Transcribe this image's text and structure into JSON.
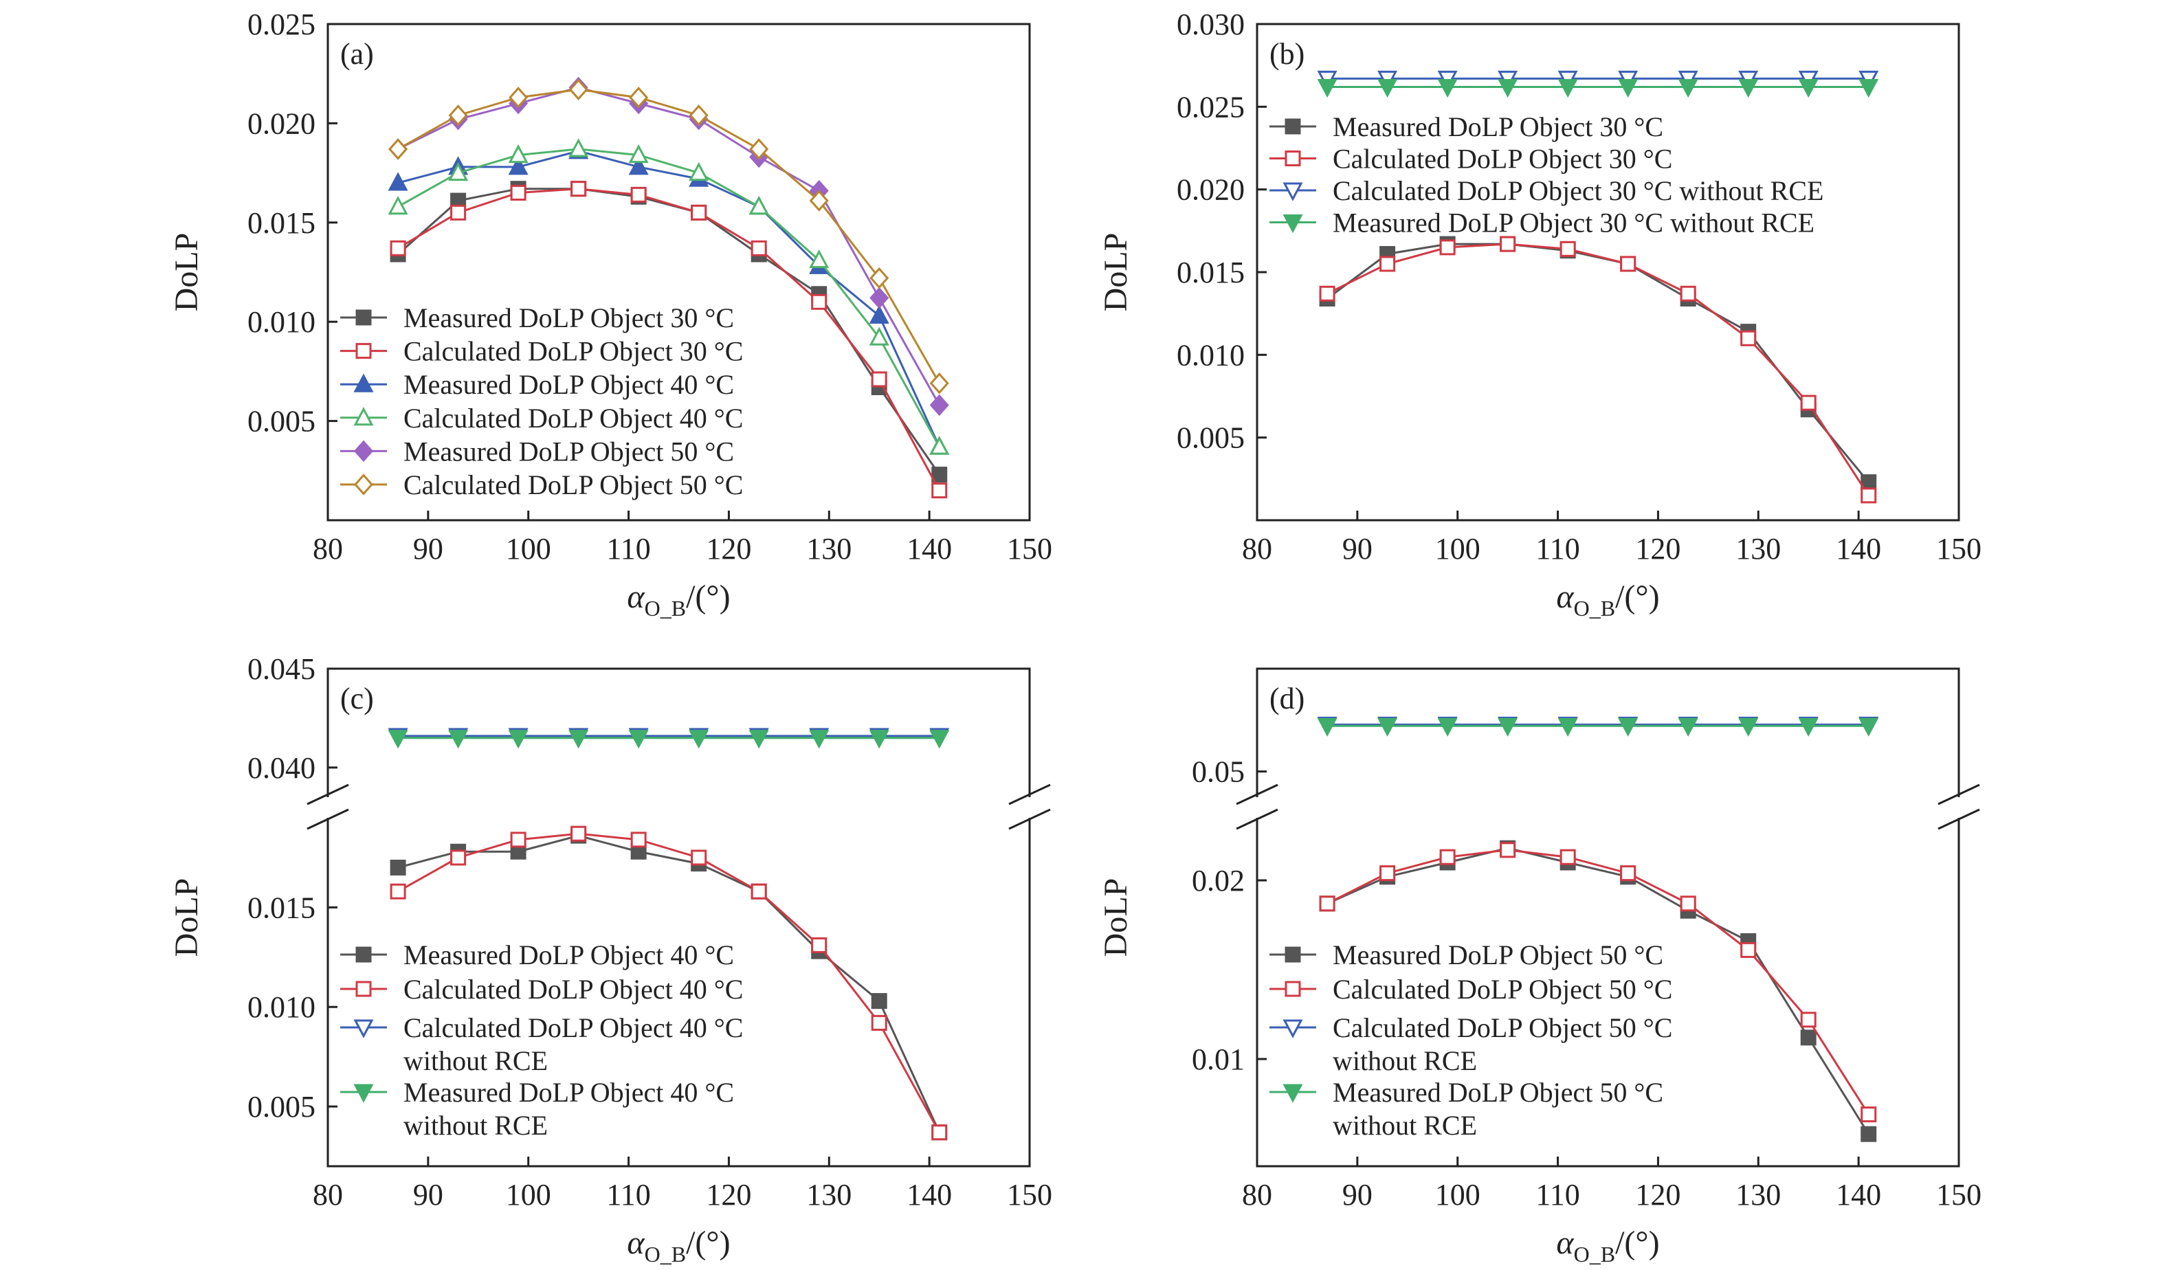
{
  "colors": {
    "measured30": "#555555",
    "calculated30": "#d03a44",
    "measured40": "#3b5fb5",
    "calculated40": "#4fb36a",
    "measured50": "#9b63c4",
    "calculated50": "#b8862c",
    "calc_norce": "#3b5fb5",
    "meas_norce": "#3fae6b",
    "meas_gray": "#555555",
    "calc_red": "#d03a44"
  },
  "chart_data": [
    {
      "type": "line",
      "panel_label": "(a)",
      "xlabel_main": "α",
      "xlabel_sub": "O_B",
      "xlabel_unit": "/(°)",
      "ylabel": "DoLP",
      "xlim": [
        80,
        150
      ],
      "ylim": [
        0,
        0.025
      ],
      "x_ticks": [
        "80",
        "90",
        "100",
        "110",
        "120",
        "130",
        "140",
        "150"
      ],
      "y_ticks": [
        "0.005",
        "0.010",
        "0.015",
        "0.020",
        "0.025"
      ],
      "legend_position": "lower-left",
      "x": [
        87,
        93,
        99,
        105,
        111,
        117,
        123,
        129,
        135,
        141
      ],
      "series": [
        {
          "name": "Measured DoLP Object 30 °C",
          "marker": "square-filled",
          "color_key": "measured30",
          "values": [
            0.0134,
            0.0161,
            0.0167,
            0.0167,
            0.0163,
            0.0155,
            0.0134,
            0.0114,
            0.0067,
            0.0023
          ]
        },
        {
          "name": "Calculated DoLP Object 30 °C",
          "marker": "square-open",
          "color_key": "calculated30",
          "values": [
            0.0137,
            0.0155,
            0.0165,
            0.0167,
            0.0164,
            0.0155,
            0.0137,
            0.011,
            0.0071,
            0.0015
          ]
        },
        {
          "name": "Measured DoLP Object 40 °C",
          "marker": "triangle-up-filled",
          "color_key": "measured40",
          "values": [
            0.017,
            0.0178,
            0.0178,
            0.0186,
            0.0178,
            0.0172,
            0.0158,
            0.0128,
            0.0103,
            0.0037
          ]
        },
        {
          "name": "Calculated DoLP Object 40 °C",
          "marker": "triangle-up-open",
          "color_key": "calculated40",
          "values": [
            0.0158,
            0.0175,
            0.0184,
            0.0187,
            0.0184,
            0.0175,
            0.0158,
            0.0131,
            0.0092,
            0.0037
          ]
        },
        {
          "name": "Measured DoLP Object 50 °C",
          "marker": "diamond-filled",
          "color_key": "measured50",
          "values": [
            0.0187,
            0.0202,
            0.021,
            0.0218,
            0.021,
            0.0202,
            0.0183,
            0.0166,
            0.0112,
            0.0058
          ]
        },
        {
          "name": "Calculated DoLP Object 50 °C",
          "marker": "diamond-open",
          "color_key": "calculated50",
          "values": [
            0.0187,
            0.0204,
            0.0213,
            0.0217,
            0.0213,
            0.0204,
            0.0187,
            0.0161,
            0.0122,
            0.0069
          ]
        }
      ]
    },
    {
      "type": "line",
      "panel_label": "(b)",
      "xlabel_main": "α",
      "xlabel_sub": "O_B",
      "xlabel_unit": "/(°)",
      "ylabel": "DoLP",
      "xlim": [
        80,
        150
      ],
      "ylim": [
        0,
        0.03
      ],
      "x_ticks": [
        "80",
        "90",
        "100",
        "110",
        "120",
        "130",
        "140",
        "150"
      ],
      "y_ticks": [
        "0.005",
        "0.010",
        "0.015",
        "0.020",
        "0.025",
        "0.030"
      ],
      "legend_position": "upper-left",
      "x": [
        87,
        93,
        99,
        105,
        111,
        117,
        123,
        129,
        135,
        141
      ],
      "series": [
        {
          "name": "Measured DoLP Object 30 °C",
          "marker": "square-filled",
          "color_key": "meas_gray",
          "values": [
            0.0134,
            0.0161,
            0.0167,
            0.0167,
            0.0163,
            0.0155,
            0.0134,
            0.0114,
            0.0067,
            0.0023
          ]
        },
        {
          "name": "Calculated DoLP Object 30 °C",
          "marker": "square-open",
          "color_key": "calc_red",
          "values": [
            0.0137,
            0.0155,
            0.0165,
            0.0167,
            0.0164,
            0.0155,
            0.0137,
            0.011,
            0.0071,
            0.0015
          ]
        },
        {
          "name": "Calculated DoLP Object 30 °C without RCE",
          "marker": "triangle-down-open",
          "color_key": "calc_norce",
          "values": [
            0.0267,
            0.0267,
            0.0267,
            0.0267,
            0.0267,
            0.0267,
            0.0267,
            0.0267,
            0.0267,
            0.0267
          ]
        },
        {
          "name": "Measured DoLP Object 30 °C without RCE",
          "marker": "triangle-down-filled",
          "color_key": "meas_norce",
          "values": [
            0.0262,
            0.0262,
            0.0262,
            0.0262,
            0.0262,
            0.0262,
            0.0262,
            0.0262,
            0.0262,
            0.0262
          ]
        }
      ]
    },
    {
      "type": "line",
      "panel_label": "(c)",
      "xlabel_main": "α",
      "xlabel_sub": "O_B",
      "xlabel_unit": "/(°)",
      "ylabel": "DoLP",
      "xlim": [
        80,
        150
      ],
      "y_axis_break": true,
      "ylim_lower": [
        0.002,
        0.0195
      ],
      "ylim_upper": [
        0.0385,
        0.045
      ],
      "x_ticks": [
        "80",
        "90",
        "100",
        "110",
        "120",
        "130",
        "140",
        "150"
      ],
      "y_ticks_lower": [
        "0.005",
        "0.010",
        "0.015"
      ],
      "y_ticks_upper": [
        "0.040",
        "0.045"
      ],
      "legend_position": "lower-left",
      "x": [
        87,
        93,
        99,
        105,
        111,
        117,
        123,
        129,
        135,
        141
      ],
      "series": [
        {
          "name": "Measured DoLP Object 40 °C",
          "marker": "square-filled",
          "color_key": "meas_gray",
          "values": [
            0.017,
            0.0178,
            0.0178,
            0.0186,
            0.0178,
            0.0172,
            0.0158,
            0.0128,
            0.0103,
            0.0037
          ]
        },
        {
          "name": "Calculated DoLP Object 40 °C",
          "marker": "square-open",
          "color_key": "calc_red",
          "values": [
            0.0158,
            0.0175,
            0.0184,
            0.0187,
            0.0184,
            0.0175,
            0.0158,
            0.0131,
            0.0092,
            0.0037
          ]
        },
        {
          "name": "Calculated DoLP Object 40 °C",
          "name_line2": "without RCE",
          "marker": "triangle-down-open",
          "color_key": "calc_norce",
          "values": [
            0.0416,
            0.0416,
            0.0416,
            0.0416,
            0.0416,
            0.0416,
            0.0416,
            0.0416,
            0.0416,
            0.0416
          ]
        },
        {
          "name": "Measured DoLP Object 40 °C",
          "name_line2": "without RCE",
          "marker": "triangle-down-filled",
          "color_key": "meas_norce",
          "values": [
            0.0415,
            0.0415,
            0.0415,
            0.0415,
            0.0415,
            0.0415,
            0.0415,
            0.0415,
            0.0415,
            0.0415
          ]
        }
      ]
    },
    {
      "type": "line",
      "panel_label": "(d)",
      "xlabel_main": "α",
      "xlabel_sub": "O_B",
      "xlabel_unit": "/(°)",
      "ylabel": "DoLP",
      "xlim": [
        80,
        150
      ],
      "y_axis_break": true,
      "ylim_lower": [
        0.004,
        0.0235
      ],
      "ylim_upper": [
        0.046,
        0.066
      ],
      "x_ticks": [
        "80",
        "90",
        "100",
        "110",
        "120",
        "130",
        "140",
        "150"
      ],
      "y_ticks_lower": [
        "0.01",
        "0.02"
      ],
      "y_ticks_upper": [
        "0.05"
      ],
      "legend_position": "lower-left",
      "x": [
        87,
        93,
        99,
        105,
        111,
        117,
        123,
        129,
        135,
        141
      ],
      "series": [
        {
          "name": "Measured DoLP Object 50 °C",
          "marker": "square-filled",
          "color_key": "meas_gray",
          "values": [
            0.0187,
            0.0202,
            0.021,
            0.0218,
            0.021,
            0.0202,
            0.0183,
            0.0166,
            0.0112,
            0.0058
          ]
        },
        {
          "name": "Calculated DoLP Object 50 °C",
          "marker": "square-open",
          "color_key": "calc_red",
          "values": [
            0.0187,
            0.0204,
            0.0213,
            0.0217,
            0.0213,
            0.0204,
            0.0187,
            0.0161,
            0.0122,
            0.0069
          ]
        },
        {
          "name": "Calculated DoLP Object 50 °C",
          "name_line2": "without RCE",
          "marker": "triangle-down-open",
          "color_key": "calc_norce",
          "values": [
            0.0573,
            0.0573,
            0.0573,
            0.0573,
            0.0573,
            0.0573,
            0.0573,
            0.0573,
            0.0573,
            0.0573
          ]
        },
        {
          "name": "Measured DoLP Object 50 °C",
          "name_line2": "without RCE",
          "marker": "triangle-down-filled",
          "color_key": "meas_norce",
          "values": [
            0.0571,
            0.0571,
            0.0571,
            0.0571,
            0.0571,
            0.0571,
            0.0571,
            0.0571,
            0.0571,
            0.0571
          ]
        }
      ]
    }
  ]
}
